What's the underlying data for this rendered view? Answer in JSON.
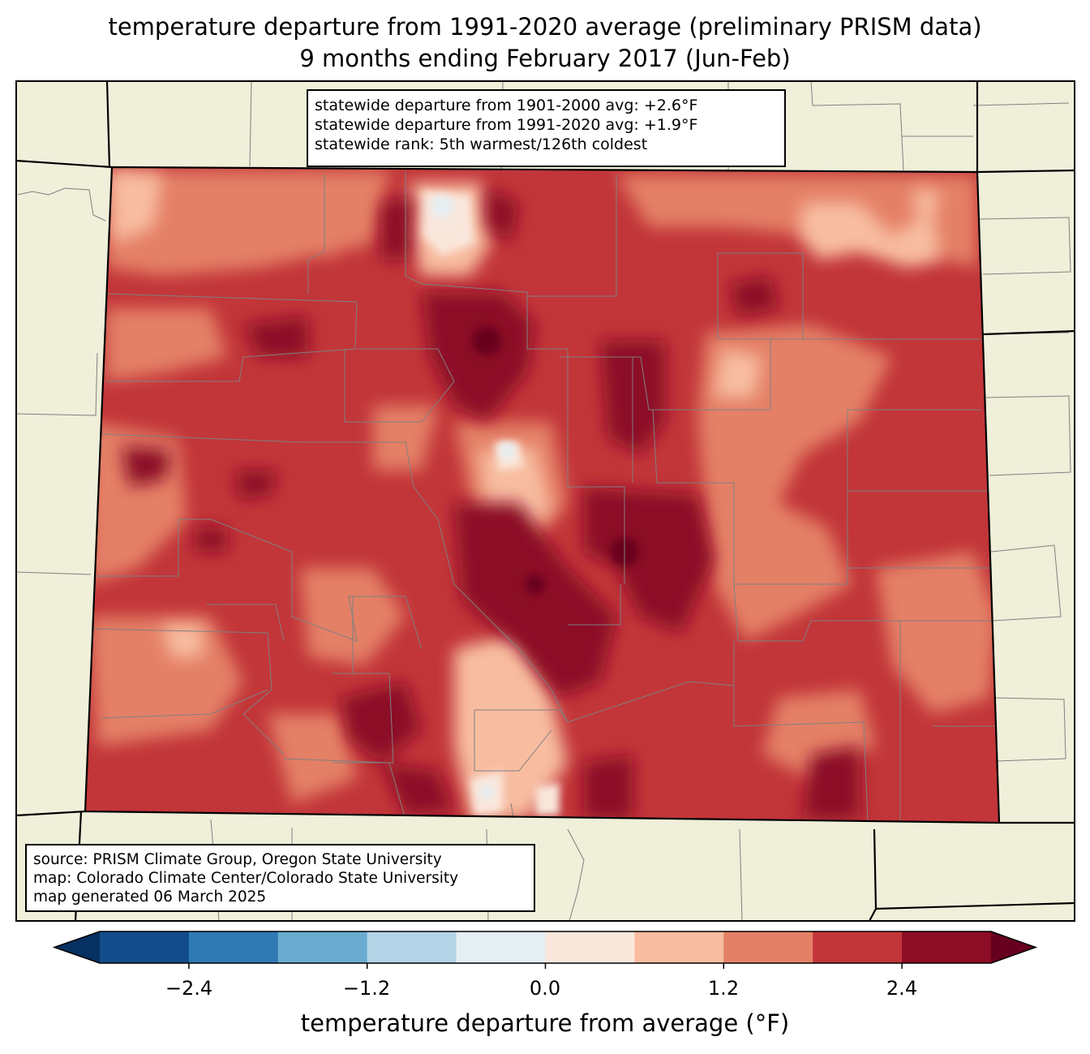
{
  "title": {
    "line1": "temperature departure from 1991-2020 average (preliminary PRISM data)",
    "line2": "9 months ending February 2017 (Jun-Feb)"
  },
  "stats": {
    "line1": "statewide departure from 1901-2000 avg: +2.6°F",
    "line2": "statewide departure from 1991-2020 avg: +1.9°F",
    "line3": "statewide rank: 5th warmest/126th coldest"
  },
  "credits": {
    "line1": "source: PRISM Climate Group, Oregon State University",
    "line2": "map: Colorado Climate Center/Colorado State University",
    "line3": "map generated 06 March 2025"
  },
  "colorbar": {
    "label": "temperature departure from average (°F)",
    "ticks": [
      "−2.4",
      "−1.2",
      "0.0",
      "1.2",
      "2.4"
    ],
    "bounds": [
      -3.0,
      3.0
    ],
    "step": 0.6,
    "colors": [
      "#053061",
      "#134c8a",
      "#2f79b5",
      "#6aacd0",
      "#b4d5e7",
      "#e5eef3",
      "#fae7dc",
      "#f8bda1",
      "#e48066",
      "#c23539",
      "#8c0d25",
      "#67001f"
    ]
  },
  "colors": {
    "land": "#efefda",
    "county_line": "#808080",
    "state_line": "#000000"
  }
}
